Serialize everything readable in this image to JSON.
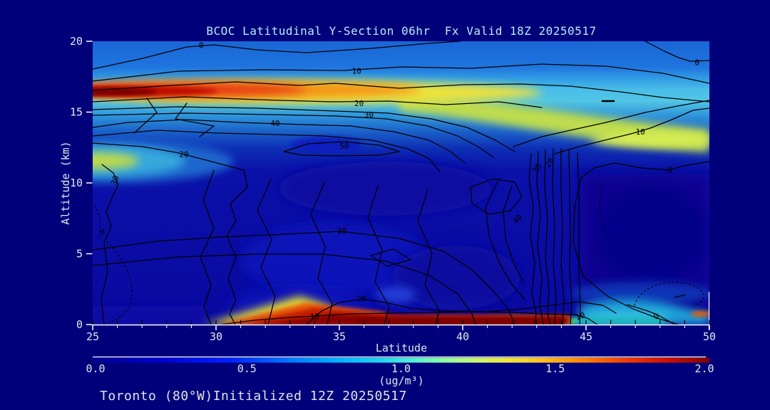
{
  "colors": {
    "background": "#00007b",
    "title_text": "#b6eef0",
    "axis_text": "#dce8ea",
    "contour_line": "#000000",
    "axis_frame": "#ffffff"
  },
  "chart_data": {
    "type": "heatmap",
    "subtype": "filled-contour-latitude-height-section",
    "title": "BCOC Latitudinal Y-Section 06hr  Fx Valid 18Z 20250517",
    "annotation": "Toronto (80°W)Initialized 12Z 20250517",
    "x_axis": {
      "label": "Latitude",
      "range": [
        25,
        50
      ],
      "major_ticks": [
        25,
        30,
        35,
        40,
        45,
        50
      ],
      "minor_tick_step": 1
    },
    "y_axis": {
      "label": "Altitude (km)",
      "range": [
        0,
        20
      ],
      "major_ticks": [
        0,
        5,
        10,
        15,
        20
      ]
    },
    "colorbar": {
      "units": "(ug/m³)",
      "range": [
        0.0,
        2.0
      ],
      "tick_labels": [
        "0.0",
        "0.5",
        "1.0",
        "1.5",
        "2.0"
      ],
      "colormap": "jet"
    },
    "contour_lines": {
      "labeled_levels": [
        0,
        10,
        20,
        30,
        40,
        50
      ],
      "style": "solid black, dotted for lowest/negative closed regions"
    },
    "contour_labels": [
      {
        "value": "0",
        "lat": 29.4,
        "alt": 19.7,
        "rot": 0
      },
      {
        "value": "10",
        "lat": 35.7,
        "alt": 17.9,
        "rot": 0
      },
      {
        "value": "20",
        "lat": 35.8,
        "alt": 15.6,
        "rot": 0
      },
      {
        "value": "30",
        "lat": 36.2,
        "alt": 14.8,
        "rot": 0
      },
      {
        "value": "40",
        "lat": 32.4,
        "alt": 14.2,
        "rot": 0
      },
      {
        "value": "50",
        "lat": 35.2,
        "alt": 12.6,
        "rot": 0
      },
      {
        "value": "20",
        "lat": 28.7,
        "alt": 12.0,
        "rot": 0
      },
      {
        "value": "30",
        "lat": 26.0,
        "alt": 10.3,
        "rot": -70
      },
      {
        "value": "0",
        "lat": 25.4,
        "alt": 6.5,
        "rot": 0
      },
      {
        "value": "30",
        "lat": 35.1,
        "alt": 6.6,
        "rot": 0
      },
      {
        "value": "40",
        "lat": 42.3,
        "alt": 7.5,
        "rot": -50
      },
      {
        "value": "20",
        "lat": 43.6,
        "alt": 11.5,
        "rot": -55
      },
      {
        "value": "30",
        "lat": 43.1,
        "alt": 11.1,
        "rot": -55
      },
      {
        "value": "10",
        "lat": 47.2,
        "alt": 13.6,
        "rot": 0
      },
      {
        "value": "0",
        "lat": 48.4,
        "alt": 10.9,
        "rot": 0
      },
      {
        "value": "0",
        "lat": 49.5,
        "alt": 18.5,
        "rot": 0
      },
      {
        "value": "20",
        "lat": 35.9,
        "alt": 1.8,
        "rot": 0
      },
      {
        "value": "10",
        "lat": 34.0,
        "alt": 0.55,
        "rot": 0
      },
      {
        "value": "10",
        "lat": 44.8,
        "alt": 0.6,
        "rot": -20
      },
      {
        "value": "0",
        "lat": 47.9,
        "alt": 0.6,
        "rot": -30
      }
    ],
    "field_maxima": [
      {
        "description": "dark-red plume band",
        "lat_range": [
          25,
          31
        ],
        "alt_km": 16.5,
        "value_ugm3": ">2.0"
      },
      {
        "description": "surface dark-red band",
        "lat_range": [
          28.5,
          44
        ],
        "alt_km": 0.3,
        "value_ugm3": ">2.0"
      },
      {
        "description": "yellow-green blob at west edge",
        "lat": 25,
        "alt_km": 11.3,
        "value_ugm3": "~1.2"
      },
      {
        "description": "upper-level yellow-green band east side",
        "lat_range": [
          44,
          50
        ],
        "alt_km": 13,
        "value_ugm3": "~1.2"
      },
      {
        "description": "surface green-cyan layer",
        "lat_range": [
          38,
          46
        ],
        "alt_km": 0.2,
        "value_ugm3": "~1.0"
      }
    ]
  }
}
